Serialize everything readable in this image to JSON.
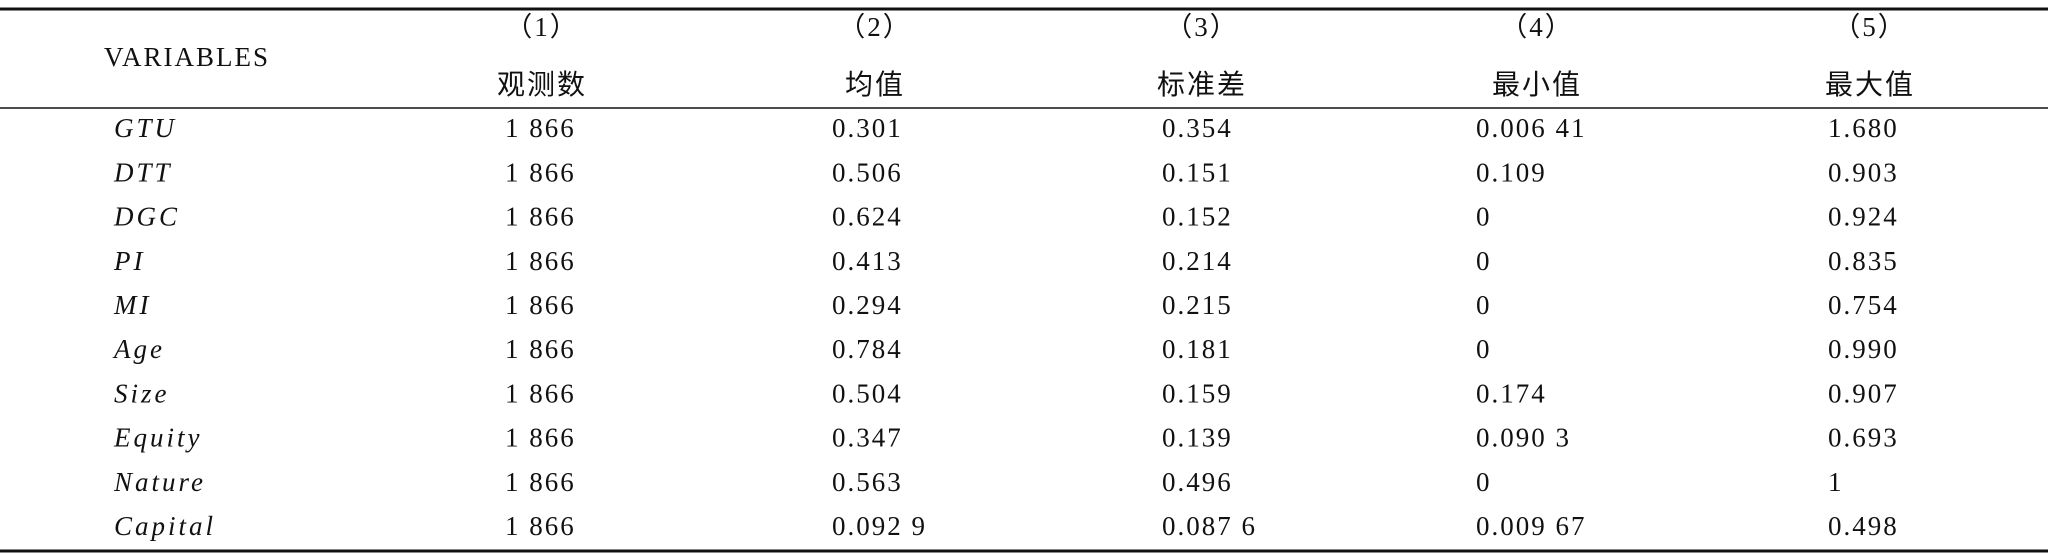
{
  "table": {
    "variables_label": "VARIABLES",
    "columns": [
      {
        "number": "（1）",
        "label": "观测数"
      },
      {
        "number": "（2）",
        "label": "均值"
      },
      {
        "number": "（3）",
        "label": "标准差"
      },
      {
        "number": "（4）",
        "label": "最小值"
      },
      {
        "number": "（5）",
        "label": "最大值"
      }
    ],
    "rows": [
      {
        "name": "GTU",
        "values": [
          "1 866",
          "0.301",
          "0.354",
          "0.006 41",
          "1.680"
        ]
      },
      {
        "name": "DTT",
        "values": [
          "1 866",
          "0.506",
          "0.151",
          "0.109",
          "0.903"
        ]
      },
      {
        "name": "DGC",
        "values": [
          "1 866",
          "0.624",
          "0.152",
          "0",
          "0.924"
        ]
      },
      {
        "name": "PI",
        "values": [
          "1 866",
          "0.413",
          "0.214",
          "0",
          "0.835"
        ]
      },
      {
        "name": "MI",
        "values": [
          "1 866",
          "0.294",
          "0.215",
          "0",
          "0.754"
        ]
      },
      {
        "name": "Age",
        "values": [
          "1 866",
          "0.784",
          "0.181",
          "0",
          "0.990"
        ]
      },
      {
        "name": "Size",
        "values": [
          "1 866",
          "0.504",
          "0.159",
          "0.174",
          "0.907"
        ]
      },
      {
        "name": "Equity",
        "values": [
          "1 866",
          "0.347",
          "0.139",
          "0.090 3",
          "0.693"
        ]
      },
      {
        "name": "Nature",
        "values": [
          "1 866",
          "0.563",
          "0.496",
          "0",
          "1"
        ]
      },
      {
        "name": "Capital",
        "values": [
          "1 866",
          "0.092 9",
          "0.087 6",
          "0.009 67",
          "0.498"
        ]
      }
    ]
  }
}
